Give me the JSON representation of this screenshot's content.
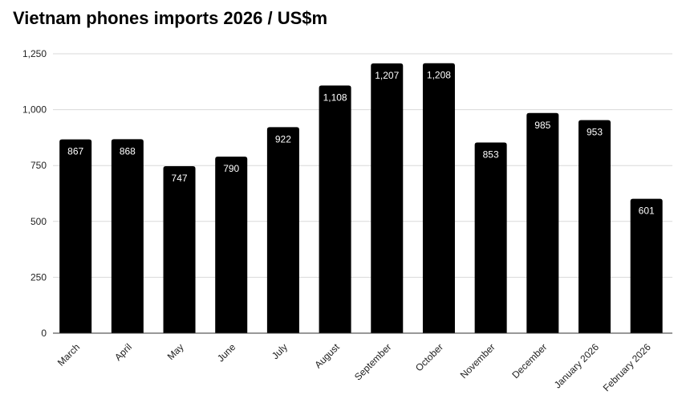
{
  "chart_data": {
    "type": "bar",
    "title": "Vietnam phones imports 2026 / US$m",
    "xlabel": "",
    "ylabel": "",
    "categories": [
      "March",
      "April",
      "May",
      "June",
      "July",
      "August",
      "September",
      "October",
      "November",
      "December",
      "January 2026",
      "February 2026"
    ],
    "values": [
      867,
      868,
      747,
      790,
      922,
      1108,
      1207,
      1208,
      853,
      985,
      953,
      601
    ],
    "data_labels": [
      "867",
      "868",
      "747",
      "790",
      "922",
      "1,108",
      "1,207",
      "1,208",
      "853",
      "985",
      "953",
      "601"
    ],
    "ylim": [
      0,
      1250
    ],
    "yticks": [
      0,
      250,
      500,
      750,
      1000,
      1250
    ],
    "ytick_labels": [
      "0",
      "250",
      "500",
      "750",
      "1,000",
      "1,250"
    ],
    "grid": true,
    "legend": "none",
    "colors": {
      "bar": "#000000",
      "grid": "#d9d9d9",
      "axis": "#333333"
    }
  }
}
